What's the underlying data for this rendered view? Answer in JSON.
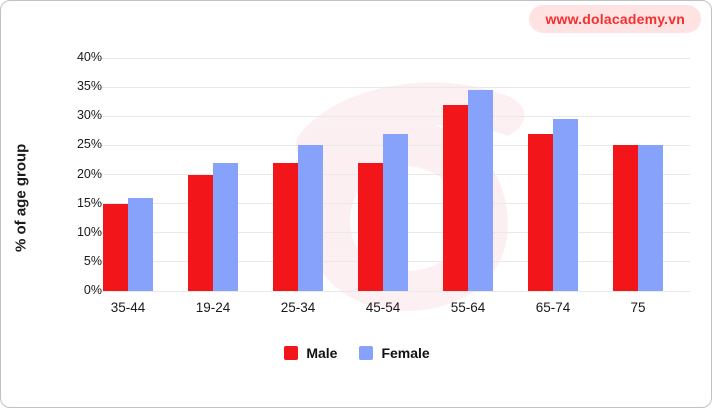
{
  "badge": {
    "text": "www.dolacademy.vn",
    "bg_color": "#ffe2e2",
    "text_color": "#f42f2f"
  },
  "colors": {
    "male_bar": "#f2151a",
    "female_bar": "#87a2fa",
    "gridline": "#e9e9e9",
    "watermark_pink": "#f2a0ae"
  },
  "chart_data": {
    "type": "bar",
    "title": "",
    "categories": [
      "35-44",
      "19-24",
      "25-34",
      "45-54",
      "55-64",
      "65-74",
      "75"
    ],
    "series": [
      {
        "name": "Male",
        "color": "#f2151a",
        "values": [
          15,
          20,
          22,
          22,
          32,
          27,
          25
        ]
      },
      {
        "name": "Female",
        "color": "#87a2fa",
        "values": [
          16,
          22,
          25,
          27,
          34.5,
          29.5,
          25
        ]
      }
    ],
    "xlabel": "",
    "ylabel": "% of age group",
    "ylim": [
      0,
      40
    ],
    "ytick_step": 5,
    "ytick_labels": [
      "0%",
      "5%",
      "10%",
      "15%",
      "20%",
      "25%",
      "30%",
      "35%",
      "40%"
    ],
    "grid": true,
    "legend_position": "bottom"
  }
}
